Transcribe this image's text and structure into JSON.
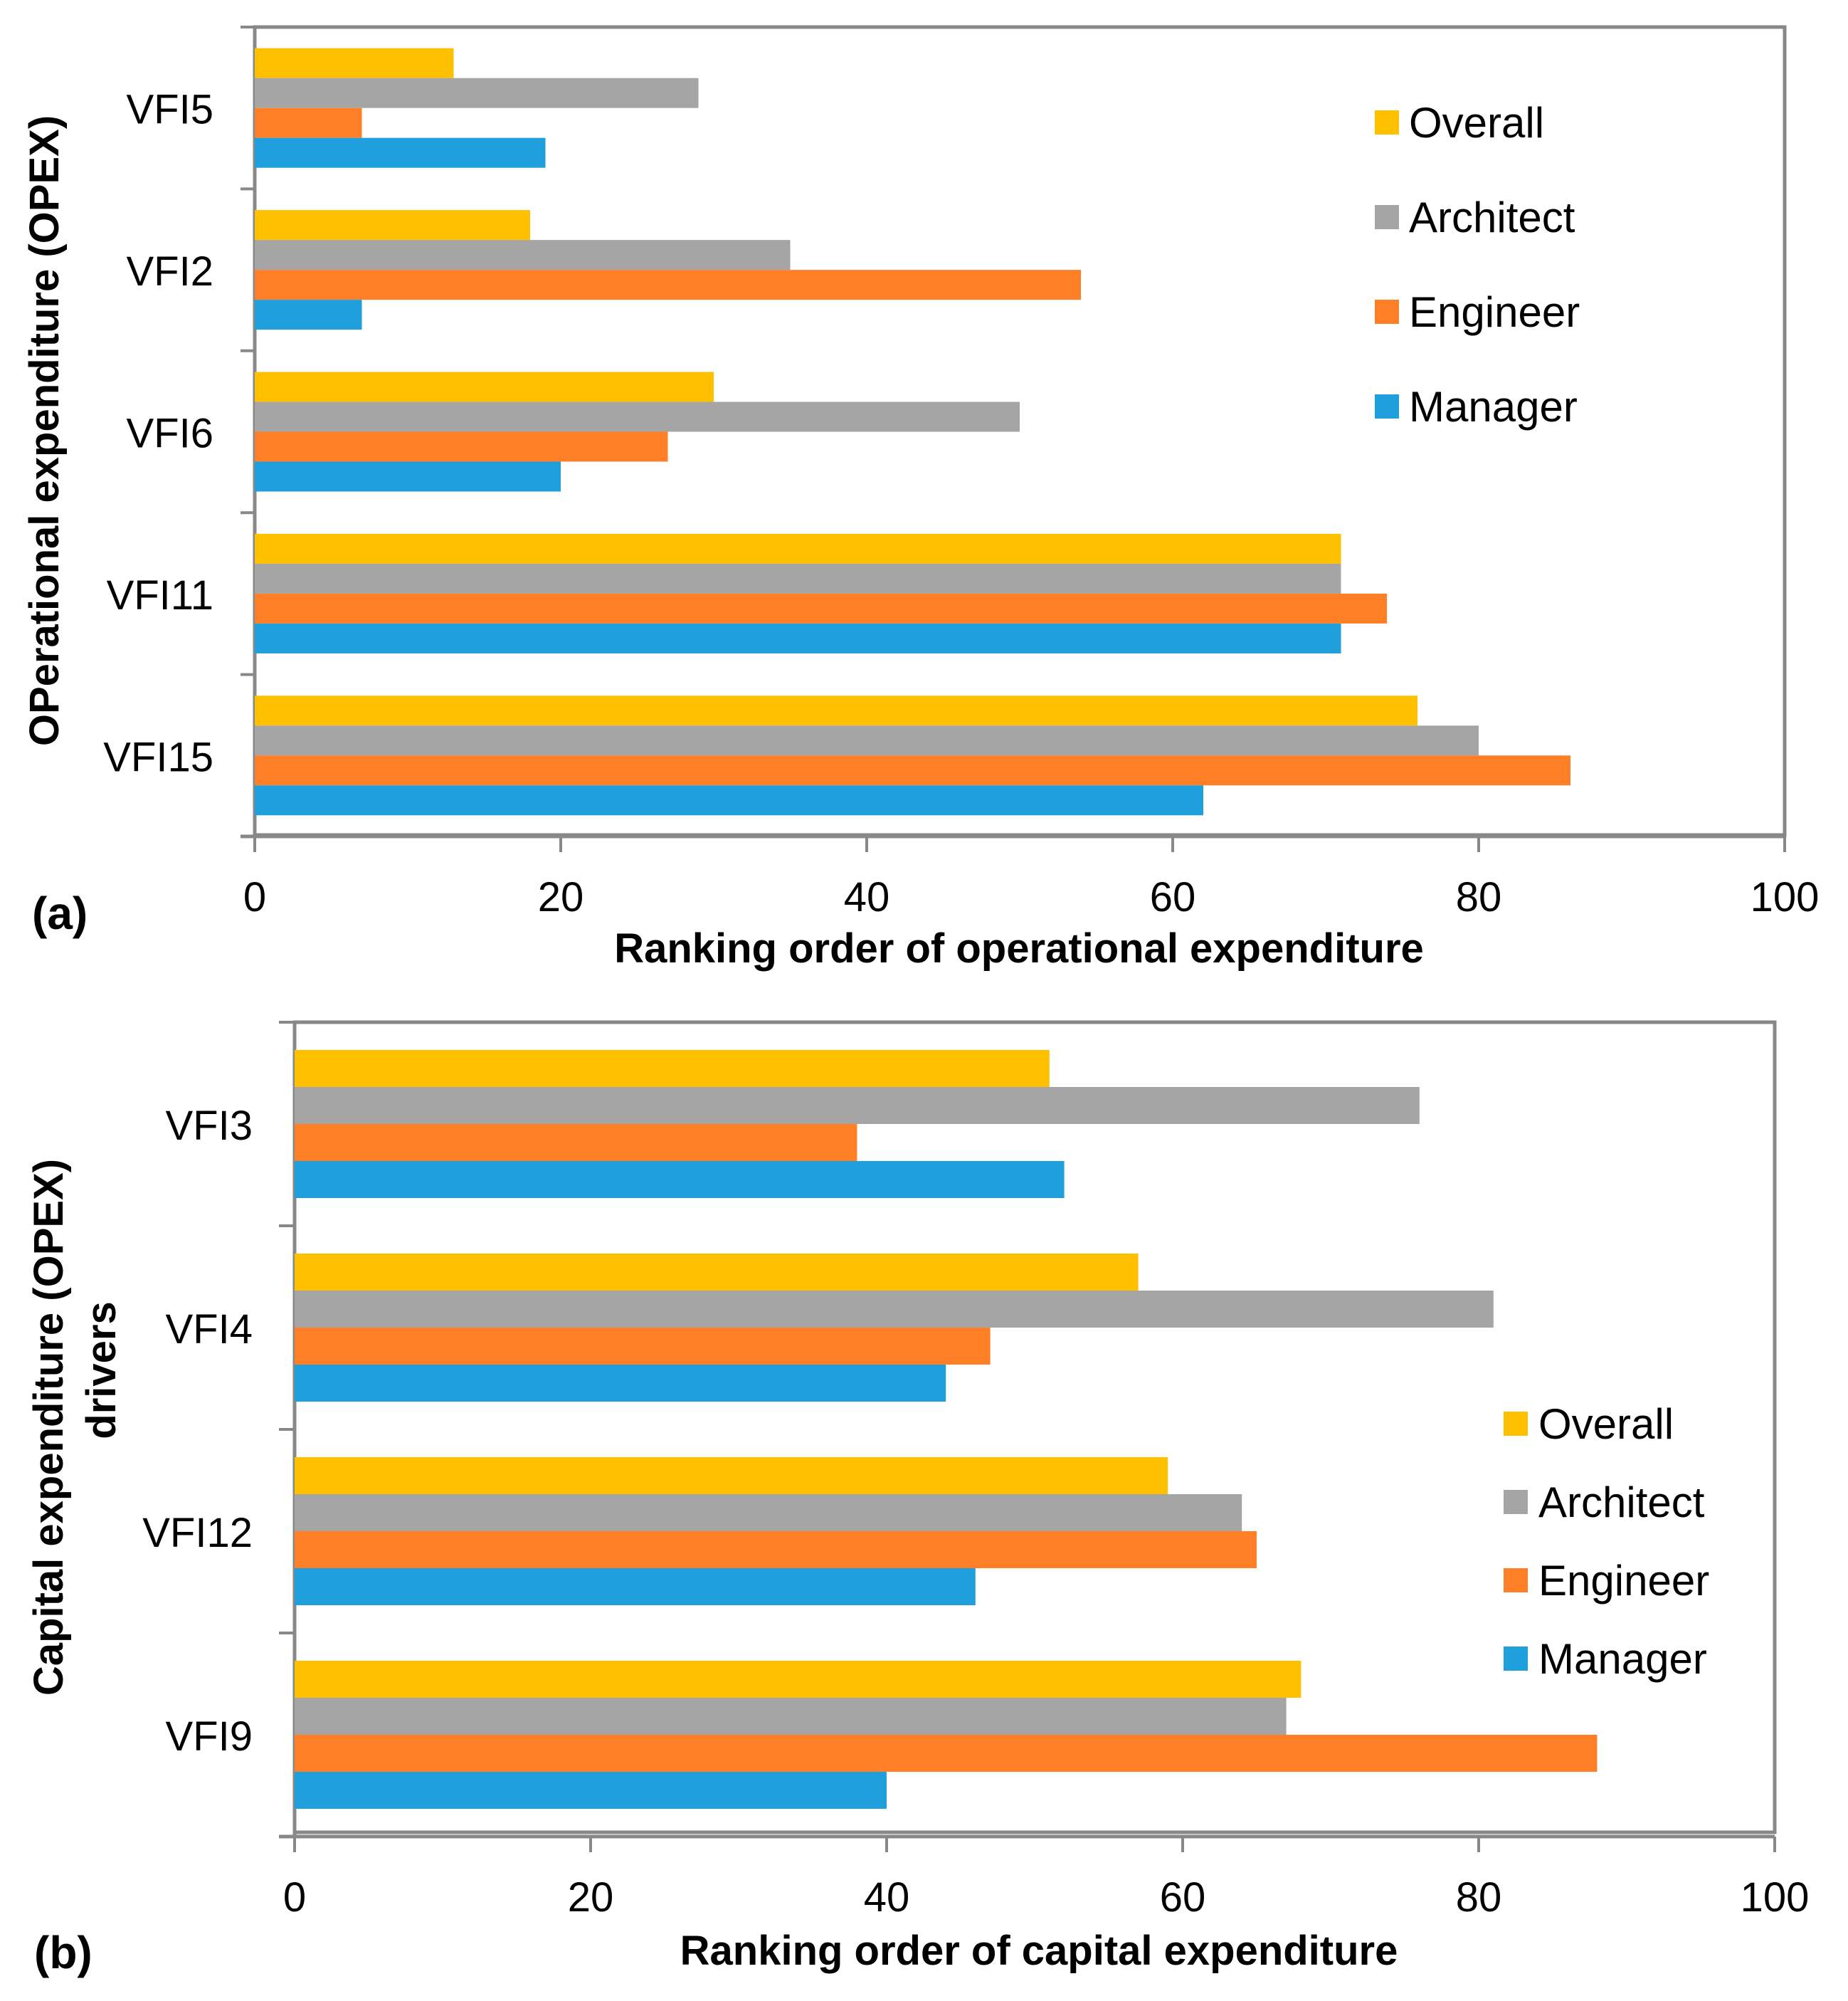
{
  "colors": {
    "Overall": "#FFC000",
    "Architect": "#A5A5A5",
    "Engineer": "#FF7F27",
    "Manager": "#1F9FDB",
    "axis": "#888888"
  },
  "chart_data": [
    {
      "type": "bar",
      "orientation": "horizontal",
      "panel_label": "(a)",
      "xlabel": "Ranking order of operational expenditure",
      "ylabel": "OPerational expenditure (OPEX)",
      "ylabel_line2": "",
      "xlim": [
        0,
        100
      ],
      "xticks": [
        0,
        20,
        40,
        60,
        80,
        100
      ],
      "categories": [
        "VFI5",
        "VFI2",
        "VFI6",
        "VFI11",
        "VFI15"
      ],
      "series": [
        {
          "name": "Overall",
          "values": [
            13,
            18,
            30,
            71,
            76
          ]
        },
        {
          "name": "Architect",
          "values": [
            29,
            35,
            50,
            71,
            80
          ]
        },
        {
          "name": "Engineer",
          "values": [
            7,
            54,
            27,
            74,
            86
          ]
        },
        {
          "name": "Manager",
          "values": [
            19,
            7,
            20,
            71,
            62
          ]
        }
      ],
      "legend": [
        "Overall",
        "Architect",
        "Engineer",
        "Manager"
      ],
      "legend_position": "top-right"
    },
    {
      "type": "bar",
      "orientation": "horizontal",
      "panel_label": "(b)",
      "xlabel": "Ranking order of capital expenditure",
      "ylabel": "Capital expenditure (OPEX)",
      "ylabel_line2": "drivers",
      "xlim": [
        0,
        100
      ],
      "xticks": [
        0,
        20,
        40,
        60,
        80,
        100
      ],
      "categories": [
        "VFI3",
        "VFI4",
        "VFI12",
        "VFI9"
      ],
      "series": [
        {
          "name": "Overall",
          "values": [
            51,
            57,
            59,
            68
          ]
        },
        {
          "name": "Architect",
          "values": [
            76,
            81,
            64,
            67
          ]
        },
        {
          "name": "Engineer",
          "values": [
            38,
            47,
            65,
            88
          ]
        },
        {
          "name": "Manager",
          "values": [
            52,
            44,
            46,
            40
          ]
        }
      ],
      "legend": [
        "Overall",
        "Architect",
        "Engineer",
        "Manager"
      ],
      "legend_position": "right"
    }
  ]
}
